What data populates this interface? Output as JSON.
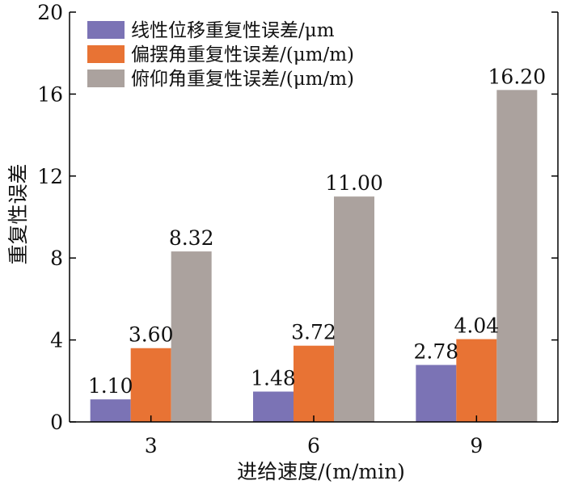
{
  "chart_data": {
    "type": "bar",
    "title": "",
    "xlabel": "进给速度/(m/min)",
    "ylabel": "重复性误差",
    "categories": [
      "3",
      "6",
      "9"
    ],
    "ylim": [
      0,
      20
    ],
    "yticks": [
      "0",
      "4",
      "8",
      "12",
      "16",
      "20"
    ],
    "grid": false,
    "legend_position": "top-left",
    "series": [
      {
        "name": "线性位移重复性误差/μm",
        "color": "#7b73b5",
        "values": [
          1.1,
          1.48,
          2.78
        ],
        "labels": [
          "1.10",
          "1.48",
          "2.78"
        ]
      },
      {
        "name": "偏摆角重复性误差/(μm/m)",
        "color": "#e87334",
        "values": [
          3.6,
          3.72,
          4.04
        ],
        "labels": [
          "3.60",
          "3.72",
          "4.04"
        ]
      },
      {
        "name": "俯仰角重复性误差/(μm/m)",
        "color": "#aba29e",
        "values": [
          8.32,
          11.0,
          16.2
        ],
        "labels": [
          "8.32",
          "11.00",
          "16.20"
        ]
      }
    ]
  }
}
